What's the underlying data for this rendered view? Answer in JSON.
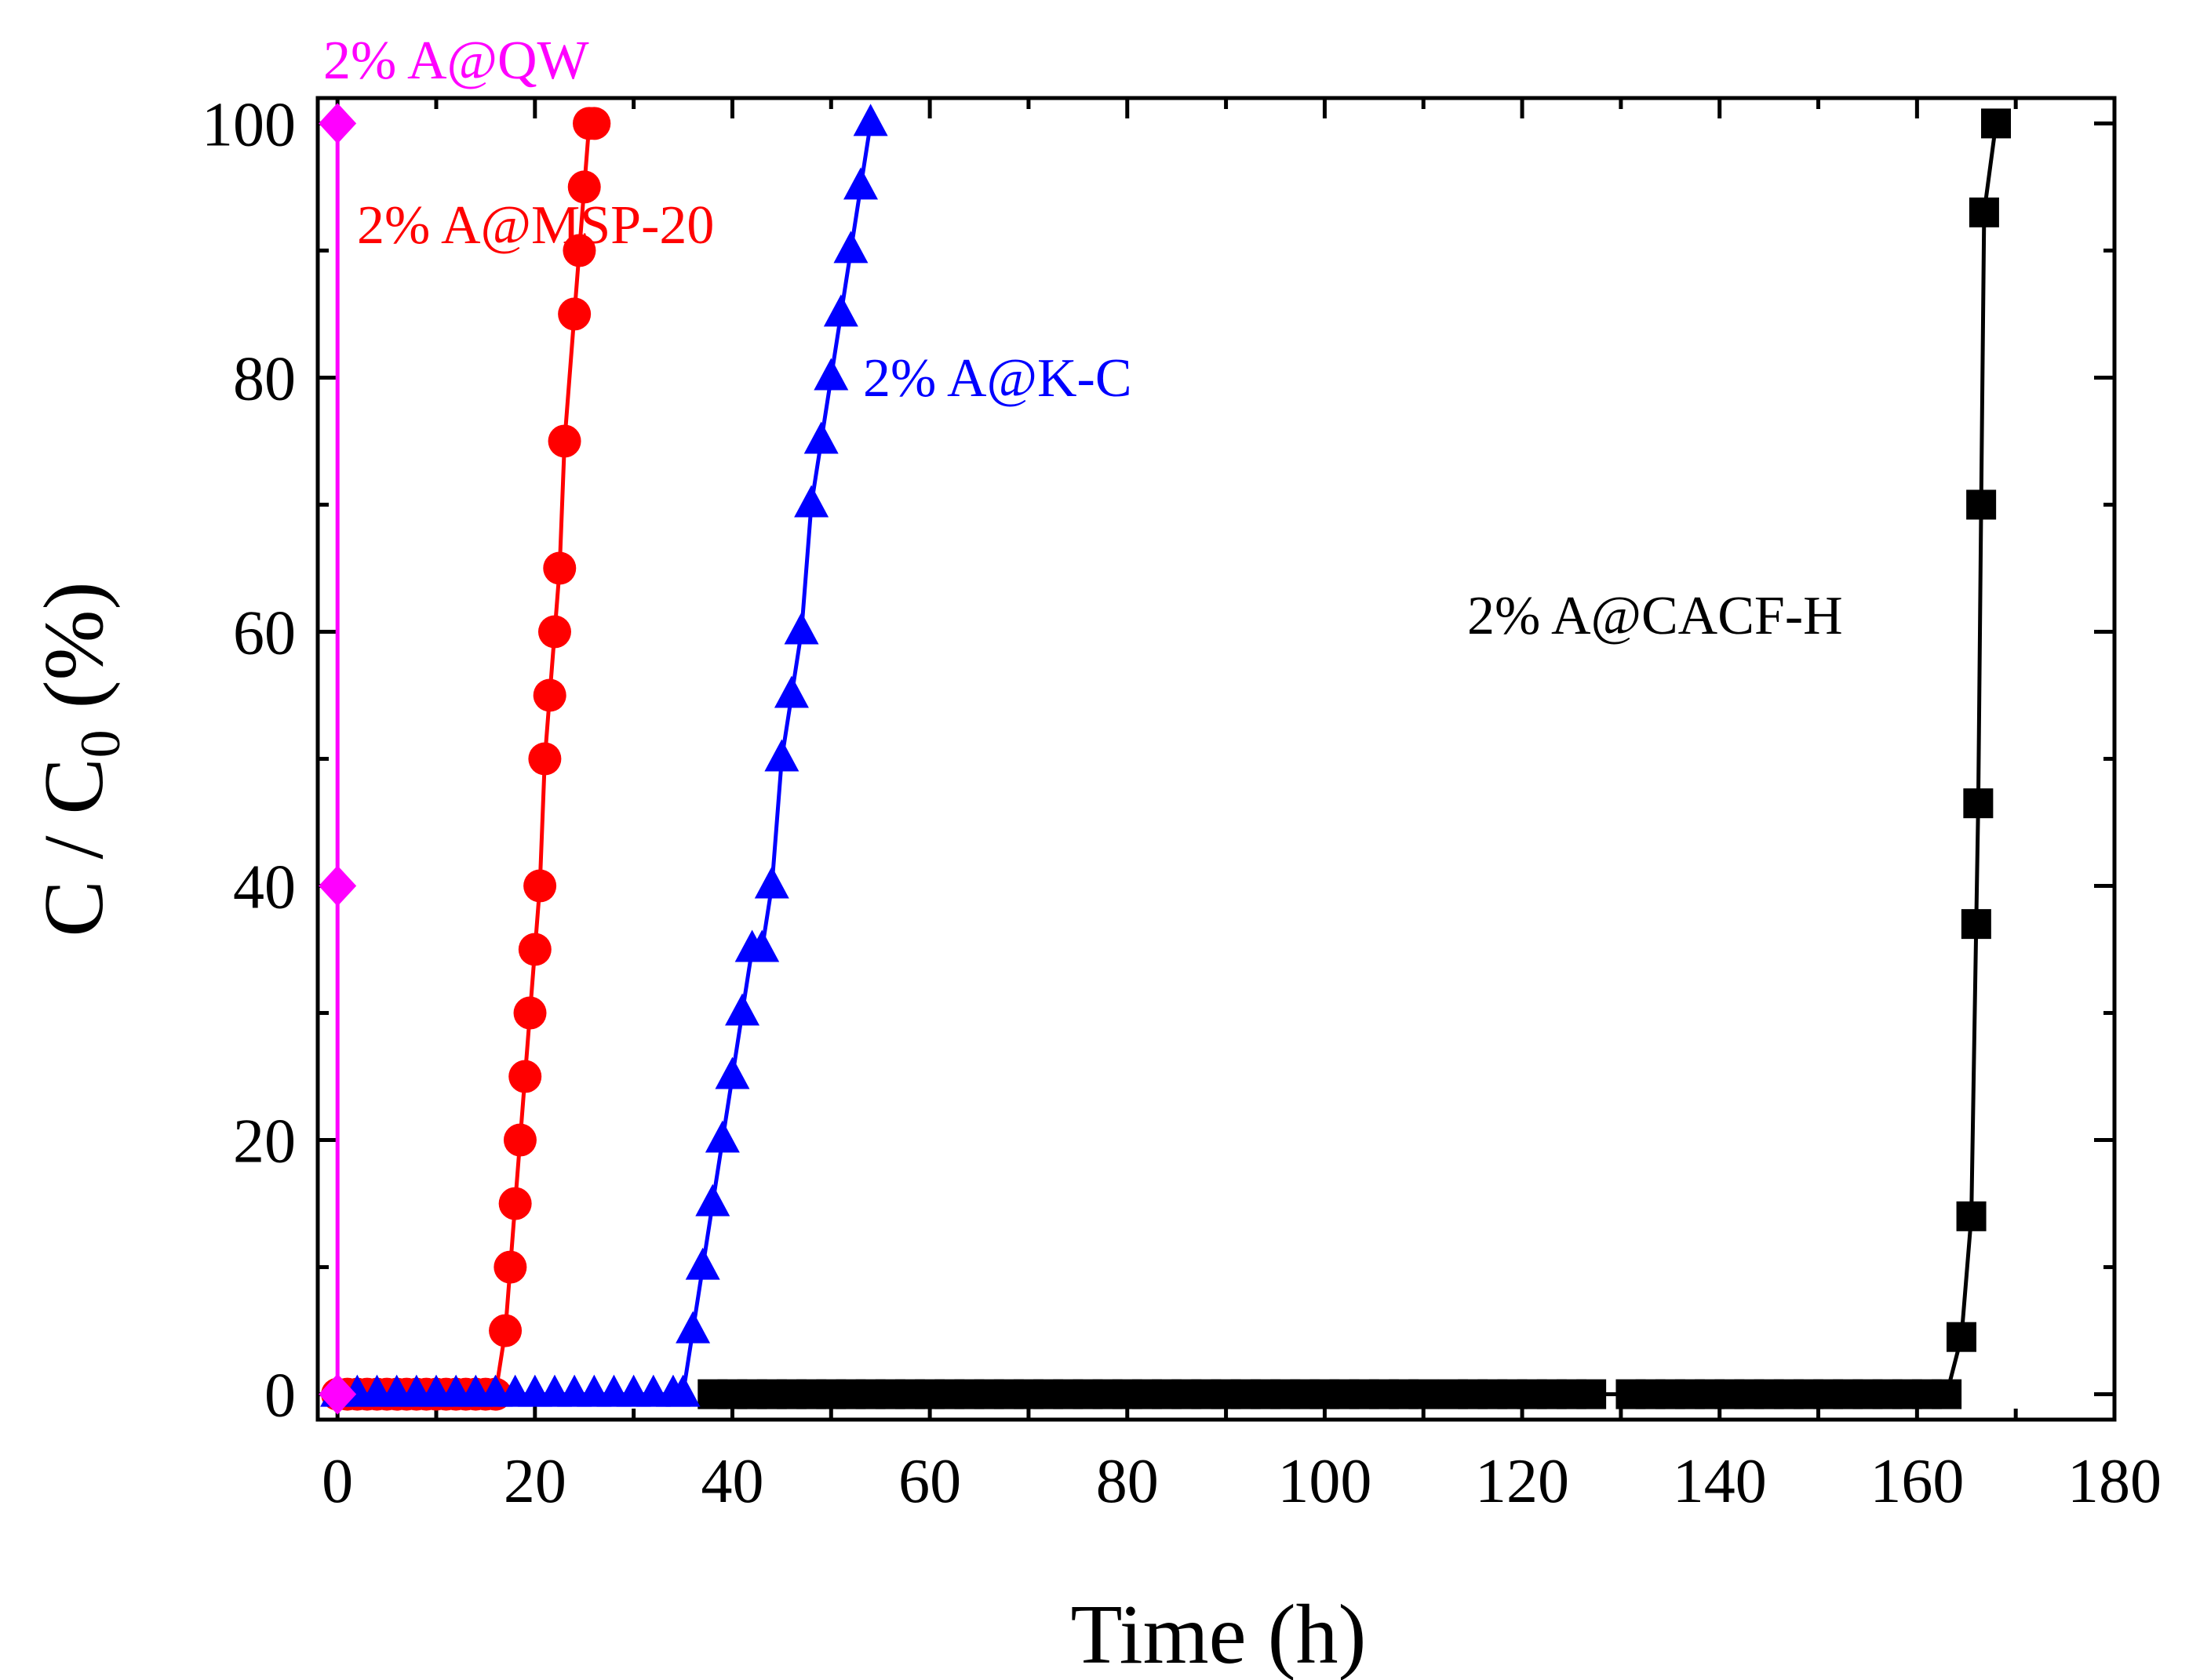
{
  "chart_data": {
    "type": "line",
    "xlabel": "Time (h)",
    "ylabel": {
      "main": "C / C",
      "sub": "0",
      "unit": " (%)"
    },
    "xlim": [
      -2,
      180
    ],
    "ylim": [
      -2,
      102
    ],
    "xticks": [
      0,
      20,
      40,
      60,
      80,
      100,
      120,
      140,
      160,
      180
    ],
    "yticks": [
      0,
      20,
      40,
      60,
      80,
      100
    ],
    "grid": false,
    "legend": "inline labels",
    "series": [
      {
        "name": "2% A@QW",
        "color": "#ff00ff",
        "marker": "diamond",
        "x": [
          0,
          0,
          0
        ],
        "y": [
          0,
          40,
          100
        ]
      },
      {
        "name": "2% A@MSP-20",
        "color": "#ff0000",
        "marker": "circle",
        "x": [
          0,
          1,
          2,
          3,
          4,
          5,
          6,
          7,
          8,
          9,
          10,
          11,
          12,
          13,
          14,
          15,
          16,
          17,
          17.5,
          18,
          18.5,
          19,
          19.5,
          20,
          20.5,
          21,
          21.5,
          22,
          22.5,
          23,
          24,
          24.5,
          25,
          25.5,
          26
        ],
        "y": [
          0,
          0,
          0,
          0,
          0,
          0,
          0,
          0,
          0,
          0,
          0,
          0,
          0,
          0,
          0,
          0,
          0,
          5,
          10,
          15,
          20,
          25,
          30,
          35,
          40,
          50,
          55,
          60,
          65,
          75,
          85,
          90,
          95,
          100,
          100
        ]
      },
      {
        "name": "2% A@K-C",
        "color": "#0000ff",
        "marker": "triangle",
        "x": [
          0,
          2,
          4,
          6,
          8,
          10,
          12,
          14,
          16,
          18,
          20,
          22,
          24,
          26,
          28,
          30,
          32,
          34,
          35,
          36,
          37,
          38,
          39,
          40,
          41,
          42,
          43,
          44,
          45,
          46,
          47,
          48,
          49,
          50,
          51,
          52,
          53,
          54
        ],
        "y": [
          0,
          0,
          0,
          0,
          0,
          0,
          0,
          0,
          0,
          0,
          0,
          0,
          0,
          0,
          0,
          0,
          0,
          0,
          0,
          5,
          10,
          15,
          20,
          25,
          30,
          35,
          35,
          40,
          50,
          55,
          60,
          70,
          75,
          80,
          85,
          90,
          95,
          100
        ]
      },
      {
        "name": "2% A@CACF-H",
        "color": "#000000",
        "marker": "square",
        "x": [
          38,
          40,
          42,
          44,
          46,
          48,
          50,
          52,
          54,
          56,
          58,
          60,
          62,
          64,
          66,
          68,
          70,
          72,
          74,
          76,
          78,
          80,
          82,
          84,
          86,
          88,
          90,
          92,
          94,
          96,
          98,
          100,
          102,
          104,
          106,
          108,
          110,
          113,
          115,
          117,
          119,
          121,
          123,
          125,
          127,
          131,
          133,
          135,
          137,
          139,
          141,
          143,
          145,
          147,
          149,
          151,
          153,
          155,
          157,
          159,
          161,
          163,
          164.5,
          165.5,
          166,
          166.2,
          166.5,
          166.8,
          168
        ],
        "y": [
          0,
          0,
          0,
          0,
          0,
          0,
          0,
          0,
          0,
          0,
          0,
          0,
          0,
          0,
          0,
          0,
          0,
          0,
          0,
          0,
          0,
          0,
          0,
          0,
          0,
          0,
          0,
          0,
          0,
          0,
          0,
          0,
          0,
          0,
          0,
          0,
          0,
          0,
          0,
          0,
          0,
          0,
          0,
          0,
          0,
          0,
          0,
          0,
          0,
          0,
          0,
          0,
          0,
          0,
          0,
          0,
          0,
          0,
          0,
          0,
          0,
          0,
          4.5,
          14,
          37,
          46.5,
          70,
          93,
          100
        ]
      }
    ]
  }
}
